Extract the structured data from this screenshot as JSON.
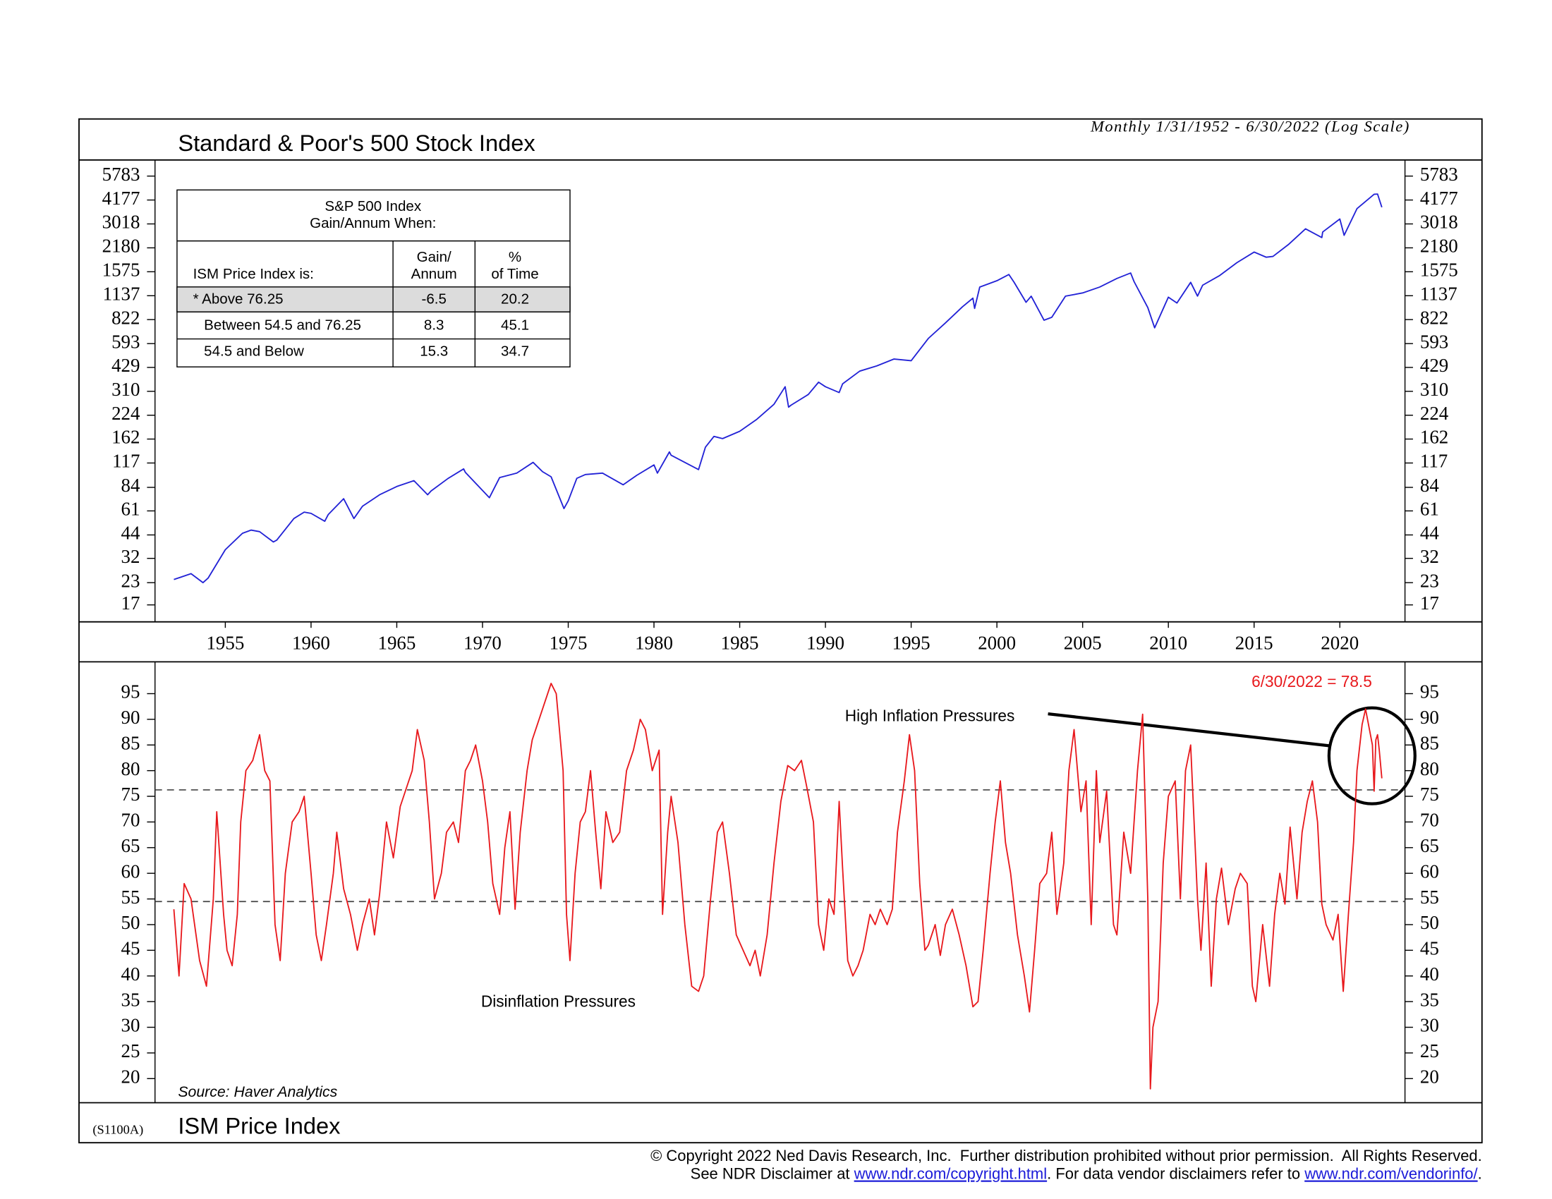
{
  "chart_data": [
    {
      "type": "line",
      "title": "Standard & Poor's 500 Stock Index",
      "subtitle": "Monthly 1/31/1952 - 6/30/2022 (Log Scale)",
      "log_scale": true,
      "color": "#2222d6",
      "xlim": [
        1950.9,
        2023.8
      ],
      "xticks": [
        1955,
        1960,
        1965,
        1970,
        1975,
        1980,
        1985,
        1990,
        1995,
        2000,
        2005,
        2010,
        2015,
        2020
      ],
      "ylim": [
        13.5,
        7200
      ],
      "yticks": [
        5783,
        4177,
        3018,
        2180,
        1575,
        1137,
        822,
        593,
        429,
        310,
        224,
        162,
        117,
        84,
        61,
        44,
        32,
        23,
        17
      ],
      "x": [
        1952.0,
        1953.0,
        1953.7,
        1954.0,
        1955.0,
        1956.0,
        1956.5,
        1957.0,
        1957.8,
        1958.0,
        1959.0,
        1959.6,
        1960.0,
        1960.8,
        1961.0,
        1961.9,
        1962.5,
        1963.0,
        1964.0,
        1965.0,
        1966.0,
        1966.8,
        1967.0,
        1968.0,
        1968.9,
        1969.0,
        1970.4,
        1971.0,
        1972.0,
        1972.95,
        1973.5,
        1974.0,
        1974.75,
        1975.0,
        1975.5,
        1976.0,
        1977.0,
        1978.2,
        1979.0,
        1980.0,
        1980.2,
        1980.9,
        1981.0,
        1982.6,
        1983.0,
        1983.5,
        1984.0,
        1985.0,
        1986.0,
        1987.0,
        1987.65,
        1987.85,
        1988.0,
        1989.0,
        1989.6,
        1990.0,
        1990.8,
        1991.0,
        1992.0,
        1993.0,
        1994.0,
        1995.0,
        1996.0,
        1997.0,
        1998.0,
        1998.6,
        1998.7,
        1999.0,
        2000.0,
        2000.7,
        2001.0,
        2001.7,
        2002.0,
        2002.75,
        2003.2,
        2004.0,
        2005.0,
        2006.0,
        2007.0,
        2007.8,
        2008.0,
        2008.8,
        2009.2,
        2010.0,
        2010.5,
        2011.3,
        2011.7,
        2012.0,
        2013.0,
        2014.0,
        2015.0,
        2015.7,
        2016.1,
        2017.0,
        2018.0,
        2018.95,
        2019.0,
        2020.0,
        2020.25,
        2021.0,
        2022.0,
        2022.2,
        2022.45
      ],
      "values": [
        24,
        26,
        23,
        24.5,
        36,
        45,
        47,
        46,
        40,
        41,
        55,
        60,
        59,
        53,
        58,
        72,
        55,
        65,
        76,
        85,
        92,
        76,
        80,
        95,
        108,
        103,
        73,
        96,
        102,
        118,
        104,
        97,
        63,
        70,
        95,
        100,
        102,
        87,
        99,
        114,
        102,
        136,
        130,
        107,
        145,
        168,
        163,
        180,
        212,
        260,
        330,
        250,
        257,
        297,
        351,
        330,
        305,
        343,
        408,
        438,
        481,
        470,
        636,
        786,
        980,
        1100,
        957,
        1279,
        1394,
        1517,
        1366,
        1040,
        1130,
        815,
        848,
        1131,
        1181,
        1280,
        1438,
        1549,
        1378,
        968,
        735,
        1115,
        1030,
        1364,
        1131,
        1312,
        1498,
        1783,
        2058,
        1920,
        1940,
        2279,
        2823,
        2507,
        2704,
        3226,
        2585,
        3714,
        4515,
        4530,
        3785
      ]
    },
    {
      "type": "line",
      "title": "ISM Price Index",
      "code": "(S1100A)",
      "source": "Source: Haver Analytics",
      "annotations": [
        "6/30/2022 = 78.5",
        "High Inflation Pressures",
        "Disinflation Pressures"
      ],
      "thresholds": [
        76.25,
        54.5
      ],
      "log_scale": false,
      "color": "#e8191d",
      "xlim": [
        1950.9,
        2023.8
      ],
      "ylim": [
        15.3,
        101.2
      ],
      "yticks": [
        95,
        90,
        85,
        80,
        75,
        70,
        65,
        60,
        55,
        50,
        45,
        40,
        35,
        30,
        25,
        20
      ],
      "x": [
        1952.0,
        1952.3,
        1952.6,
        1953.0,
        1953.5,
        1953.9,
        1954.3,
        1954.5,
        1954.9,
        1955.1,
        1955.4,
        1955.7,
        1955.9,
        1956.2,
        1956.6,
        1957.0,
        1957.3,
        1957.6,
        1957.9,
        1958.2,
        1958.5,
        1958.9,
        1959.3,
        1959.6,
        1960.0,
        1960.3,
        1960.6,
        1960.9,
        1961.3,
        1961.5,
        1961.9,
        1962.3,
        1962.7,
        1963.0,
        1963.4,
        1963.7,
        1964.0,
        1964.4,
        1964.8,
        1965.2,
        1965.5,
        1965.9,
        1966.2,
        1966.6,
        1966.9,
        1967.2,
        1967.6,
        1967.9,
        1968.3,
        1968.6,
        1969.0,
        1969.3,
        1969.6,
        1970.0,
        1970.3,
        1970.6,
        1971.0,
        1971.3,
        1971.6,
        1971.9,
        1972.2,
        1972.6,
        1972.9,
        1973.3,
        1973.6,
        1974.0,
        1974.3,
        1974.7,
        1974.9,
        1975.1,
        1975.4,
        1975.7,
        1976.0,
        1976.3,
        1976.6,
        1976.9,
        1977.2,
        1977.6,
        1978.0,
        1978.4,
        1978.8,
        1979.2,
        1979.5,
        1979.9,
        1980.3,
        1980.5,
        1980.8,
        1981.0,
        1981.4,
        1981.8,
        1982.2,
        1982.6,
        1982.9,
        1983.3,
        1983.7,
        1984.0,
        1984.4,
        1984.8,
        1985.2,
        1985.6,
        1985.9,
        1986.2,
        1986.6,
        1987.0,
        1987.4,
        1987.8,
        1988.2,
        1988.6,
        1988.9,
        1989.3,
        1989.6,
        1989.9,
        1990.2,
        1990.5,
        1990.8,
        1991.0,
        1991.3,
        1991.6,
        1991.9,
        1992.2,
        1992.6,
        1992.9,
        1993.2,
        1993.6,
        1993.9,
        1994.2,
        1994.6,
        1994.9,
        1995.2,
        1995.5,
        1995.8,
        1996.0,
        1996.4,
        1996.7,
        1997.0,
        1997.4,
        1997.8,
        1998.2,
        1998.6,
        1998.9,
        1999.2,
        1999.6,
        1999.9,
        2000.2,
        2000.5,
        2000.8,
        2001.2,
        2001.6,
        2001.9,
        2002.2,
        2002.5,
        2002.9,
        2003.2,
        2003.5,
        2003.9,
        2004.2,
        2004.5,
        2004.9,
        2005.2,
        2005.5,
        2005.8,
        2006.0,
        2006.4,
        2006.8,
        2007.0,
        2007.4,
        2007.8,
        2008.2,
        2008.5,
        2008.8,
        2008.95,
        2009.1,
        2009.4,
        2009.7,
        2010.0,
        2010.4,
        2010.7,
        2011.0,
        2011.3,
        2011.7,
        2011.9,
        2012.2,
        2012.5,
        2012.8,
        2013.1,
        2013.5,
        2013.9,
        2014.2,
        2014.6,
        2014.9,
        2015.1,
        2015.5,
        2015.9,
        2016.2,
        2016.5,
        2016.8,
        2017.1,
        2017.5,
        2017.8,
        2018.1,
        2018.4,
        2018.7,
        2018.95,
        2019.2,
        2019.6,
        2019.9,
        2020.2,
        2020.5,
        2020.8,
        2021.0,
        2021.3,
        2021.5,
        2021.9,
        2022.0,
        2022.1,
        2022.2,
        2022.3,
        2022.45
      ],
      "values": [
        53,
        40,
        58,
        55,
        43,
        38,
        55,
        72,
        52,
        45,
        42,
        52,
        70,
        80,
        82,
        87,
        80,
        78,
        50,
        43,
        60,
        70,
        72,
        75,
        60,
        48,
        43,
        50,
        60,
        68,
        57,
        52,
        45,
        50,
        55,
        48,
        56,
        70,
        63,
        73,
        76,
        80,
        88,
        82,
        70,
        55,
        60,
        68,
        70,
        66,
        80,
        82,
        85,
        78,
        70,
        58,
        52,
        65,
        72,
        53,
        68,
        80,
        86,
        90,
        93,
        97,
        95,
        80,
        52,
        43,
        60,
        70,
        72,
        80,
        68,
        57,
        72,
        66,
        68,
        80,
        84,
        90,
        88,
        80,
        84,
        52,
        68,
        75,
        66,
        50,
        38,
        37,
        40,
        55,
        68,
        70,
        60,
        48,
        45,
        42,
        45,
        40,
        48,
        62,
        74,
        81,
        80,
        82,
        77,
        70,
        50,
        45,
        55,
        52,
        74,
        61,
        43,
        40,
        42,
        45,
        52,
        50,
        53,
        50,
        53,
        68,
        78,
        87,
        80,
        58,
        45,
        46,
        50,
        44,
        50,
        53,
        48,
        42,
        34,
        35,
        45,
        60,
        70,
        78,
        66,
        60,
        48,
        40,
        33,
        45,
        58,
        60,
        68,
        52,
        62,
        80,
        88,
        72,
        78,
        50,
        80,
        66,
        76,
        50,
        48,
        68,
        60,
        80,
        91,
        55,
        18,
        30,
        35,
        62,
        75,
        78,
        55,
        80,
        85,
        55,
        45,
        62,
        38,
        55,
        61,
        50,
        57,
        60,
        58,
        38,
        35,
        50,
        38,
        52,
        60,
        54,
        69,
        55,
        68,
        74,
        78,
        70,
        54,
        50,
        47,
        52,
        37,
        52,
        66,
        80,
        89,
        92,
        85,
        76,
        86,
        87,
        84,
        78.5
      ]
    }
  ],
  "table": {
    "title": [
      "S&P 500 Index",
      "Gain/Annum When:"
    ],
    "header": [
      [
        "ISM Price Index is:"
      ],
      [
        "Gain/",
        "Annum"
      ],
      [
        "%",
        "of Time"
      ]
    ],
    "rows": [
      [
        "* Above 76.25",
        -6.5,
        20.2
      ],
      [
        "Between 54.5 and 76.25",
        8.3,
        45.1
      ],
      [
        "54.5 and Below",
        15.3,
        34.7
      ]
    ]
  },
  "footer": {
    "line1": "© Copyright 2022 Ned Davis Research, Inc.  Further distribution prohibited without prior permission.  All Rights Reserved.",
    "line2": [
      "See NDR Disclaimer at ",
      "www.ndr.com/copyright.html",
      ". For data vendor disclaimers refer to ",
      "www.ndr.com/vendorinfo/",
      "."
    ]
  }
}
